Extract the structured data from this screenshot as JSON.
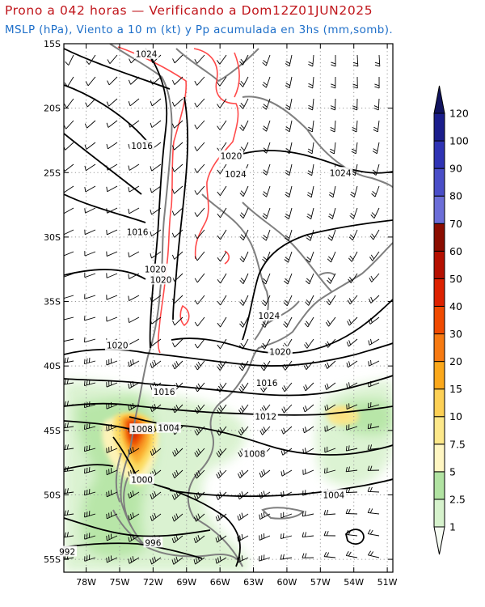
{
  "title": "Prono a 042 horas — Verificando a Dom12Z01JUN2025",
  "subtitle": "MSLP (hPa), Viento a 10 m (kt) y Pp acumulada en 3hs (mm,somb).",
  "colors": {
    "title": "#c0151b",
    "subtitle": "#1e6fc9",
    "isobar": "#000000",
    "coastline": "#808080",
    "topography": "#ff4040"
  },
  "map": {
    "lat_labels": [
      "15S",
      "20S",
      "25S",
      "30S",
      "35S",
      "40S",
      "45S",
      "50S",
      "55S"
    ],
    "lon_labels": [
      "78W",
      "75W",
      "72W",
      "69W",
      "66W",
      "63W",
      "60W",
      "57W",
      "54W",
      "51W"
    ],
    "isobar_labels": [
      {
        "text": "1024",
        "lat": -15.8,
        "lon": -72.6
      },
      {
        "text": "1016",
        "lat": -22.9,
        "lon": -73.0
      },
      {
        "text": "1020",
        "lat": -23.7,
        "lon": -65.0
      },
      {
        "text": "1024",
        "lat": -25.1,
        "lon": -64.6
      },
      {
        "text": "1024",
        "lat": -25.0,
        "lon": -55.2
      },
      {
        "text": "1016",
        "lat": -29.6,
        "lon": -73.4
      },
      {
        "text": "1020",
        "lat": -32.5,
        "lon": -71.8
      },
      {
        "text": "1020",
        "lat": -33.3,
        "lon": -71.3
      },
      {
        "text": "1024",
        "lat": -36.1,
        "lon": -61.6
      },
      {
        "text": "1020",
        "lat": -38.4,
        "lon": -75.2
      },
      {
        "text": "1020",
        "lat": -38.9,
        "lon": -60.6
      },
      {
        "text": "1016",
        "lat": -41.3,
        "lon": -61.8
      },
      {
        "text": "1016",
        "lat": -42.0,
        "lon": -71.0
      },
      {
        "text": "1012",
        "lat": -43.9,
        "lon": -61.9
      },
      {
        "text": "1008",
        "lat": -44.9,
        "lon": -73.0
      },
      {
        "text": "1004",
        "lat": -44.8,
        "lon": -70.6
      },
      {
        "text": "1008",
        "lat": -46.8,
        "lon": -62.9
      },
      {
        "text": "1000",
        "lat": -48.8,
        "lon": -73.0
      },
      {
        "text": "1004",
        "lat": -50.0,
        "lon": -55.8
      },
      {
        "text": "996",
        "lat": -53.7,
        "lon": -72.0
      },
      {
        "text": "992",
        "lat": -54.4,
        "lon": -79.7
      }
    ]
  },
  "colorbar": {
    "tick_labels": [
      "1",
      "2.5",
      "5",
      "7.5",
      "10",
      "15",
      "20",
      "30",
      "40",
      "50",
      "60",
      "70",
      "80",
      "90",
      "100",
      "120"
    ],
    "colors": [
      "#f6fcf3",
      "#d6f2cc",
      "#b1e3a2",
      "#fff6c2",
      "#fde88a",
      "#fdd055",
      "#fba81b",
      "#f77a11",
      "#f04a00",
      "#dd2200",
      "#b51000",
      "#8b0d00",
      "#6c6ed8",
      "#4a4ec8",
      "#2f33b4",
      "#1b1e8c",
      "#12145f"
    ]
  }
}
